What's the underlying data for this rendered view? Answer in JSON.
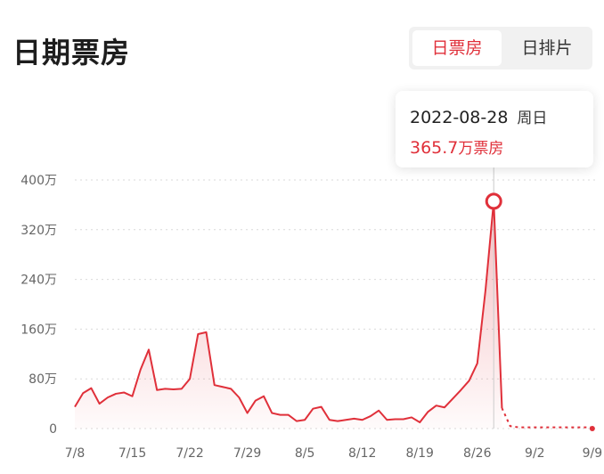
{
  "header": {
    "title": "日期票房"
  },
  "toggle": {
    "active_label": "日票房",
    "inactive_label": "日排片"
  },
  "tooltip": {
    "date": "2022-08-28",
    "weekday": "周日",
    "value": "365.7",
    "unit_suffix": "万票房"
  },
  "colors": {
    "accent": "#e0303a",
    "grid": "#d9d9d9",
    "crosshair": "#cccccc"
  },
  "chart_data": {
    "type": "line",
    "title": "",
    "xlabel": "",
    "ylabel": "",
    "ylim": [
      0,
      400
    ],
    "yticks": [
      "0",
      "80万",
      "160万",
      "240万",
      "320万",
      "400万"
    ],
    "ytick_values": [
      0,
      80,
      160,
      240,
      320,
      400
    ],
    "xticks": [
      "7/8",
      "7/15",
      "7/22",
      "7/29",
      "8/5",
      "8/12",
      "8/19",
      "8/26",
      "9/2",
      "9/9"
    ],
    "grid": true,
    "highlight": {
      "day_index": 51,
      "value": 365.7
    },
    "forecast_start_index": 52,
    "values": [
      35,
      57,
      65,
      40,
      50,
      56,
      58,
      52,
      95,
      127,
      62,
      64,
      63,
      64,
      80,
      152,
      155,
      70,
      67,
      64,
      50,
      25,
      45,
      52,
      25,
      22,
      22,
      12,
      14,
      32,
      35,
      14,
      12,
      14,
      16,
      14,
      20,
      29,
      14,
      15,
      15,
      18,
      10,
      27,
      37,
      34,
      48,
      62,
      77,
      105,
      223,
      365.7,
      33,
      4,
      2,
      2,
      2,
      2,
      2,
      2,
      2,
      2,
      2,
      2
    ],
    "forecast_end_value": 0
  }
}
